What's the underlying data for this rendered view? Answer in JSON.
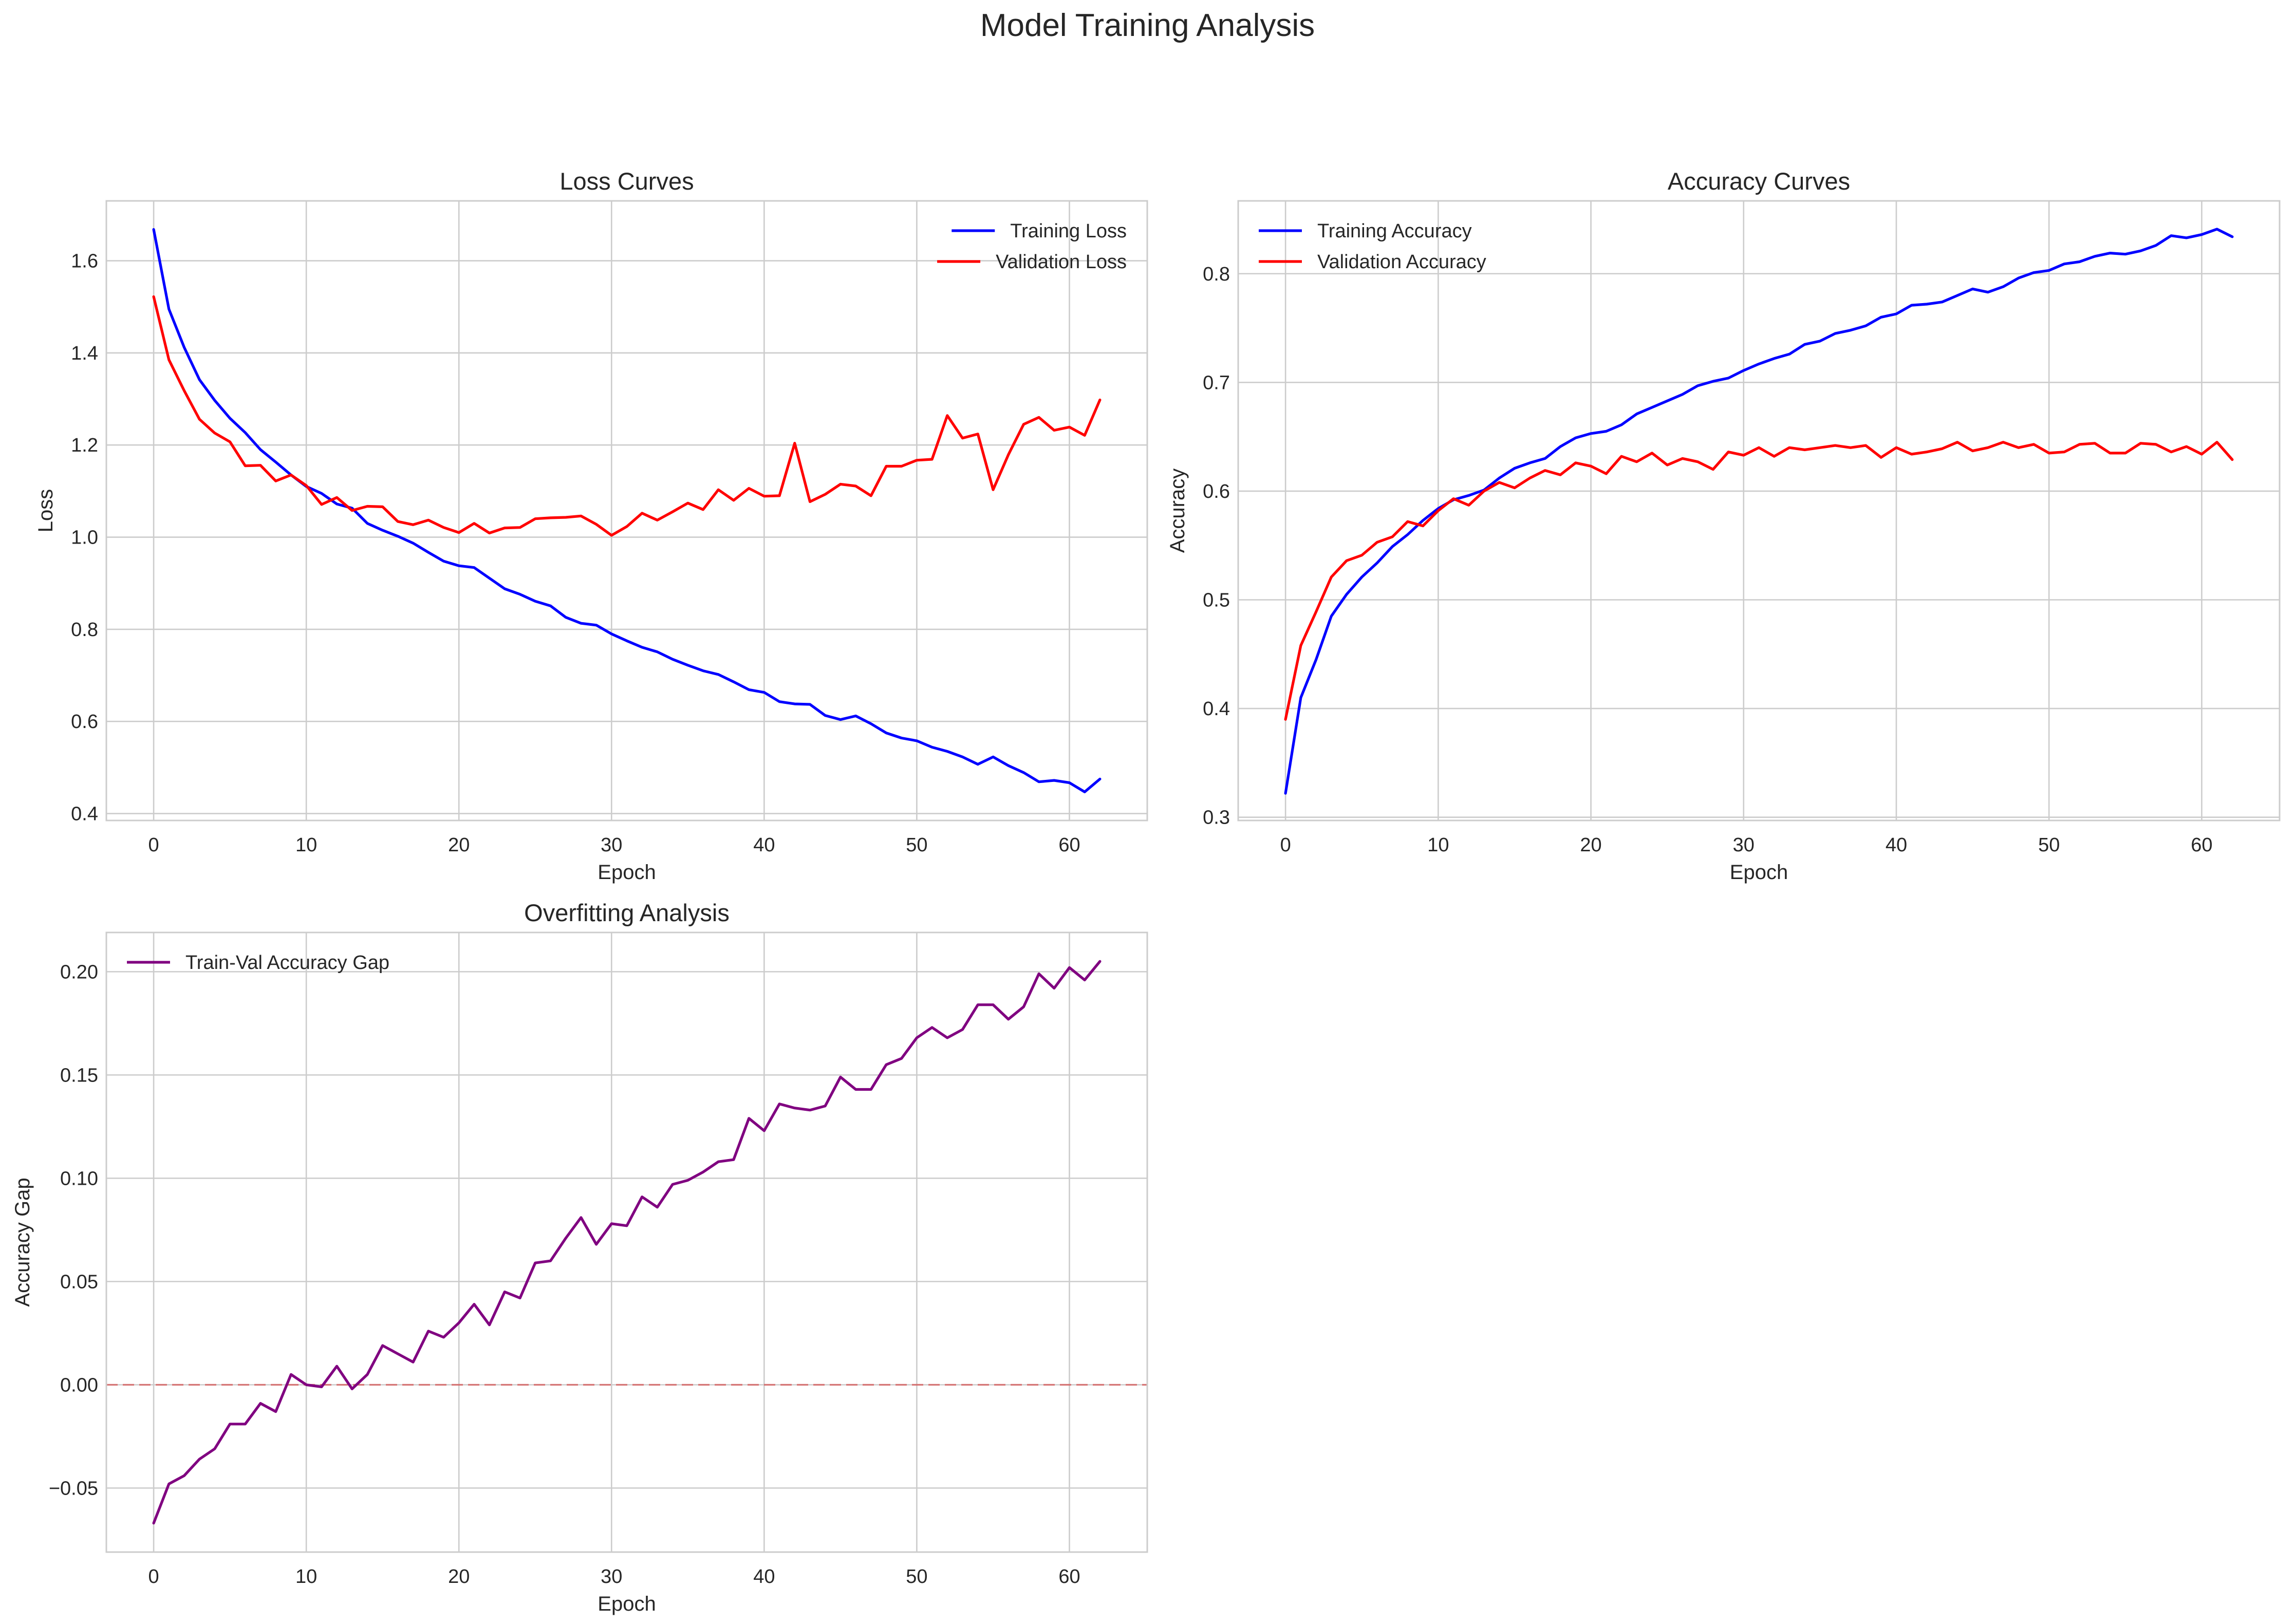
{
  "figure": {
    "title": "Model Training Analysis"
  },
  "chart_data": [
    {
      "type": "line",
      "title": "Loss Curves",
      "xlabel": "Epoch",
      "ylabel": "Loss",
      "xlim": [
        -3.1,
        65.1
      ],
      "ylim": [
        0.385,
        1.73
      ],
      "xticks": [
        0,
        10,
        20,
        30,
        40,
        50,
        60
      ],
      "yticks": [
        0.4,
        0.6,
        0.8,
        1.0,
        1.2,
        1.4,
        1.6
      ],
      "ytick_decimals": 1,
      "grid": true,
      "legend_position": "upper right",
      "series": [
        {
          "name": "Training Loss",
          "color": "#0000ff",
          "values": [
            1.668,
            1.495,
            1.412,
            1.342,
            1.297,
            1.258,
            1.227,
            1.19,
            1.163,
            1.135,
            1.11,
            1.095,
            1.072,
            1.063,
            1.03,
            1.015,
            1.002,
            0.987,
            0.967,
            0.948,
            0.938,
            0.934,
            0.911,
            0.888,
            0.876,
            0.861,
            0.851,
            0.826,
            0.813,
            0.809,
            0.79,
            0.775,
            0.761,
            0.751,
            0.735,
            0.722,
            0.71,
            0.702,
            0.686,
            0.669,
            0.663,
            0.643,
            0.638,
            0.637,
            0.613,
            0.604,
            0.612,
            0.595,
            0.575,
            0.564,
            0.558,
            0.544,
            0.535,
            0.523,
            0.507,
            0.523,
            0.504,
            0.489,
            0.469,
            0.472,
            0.467,
            0.447,
            0.475
          ]
        },
        {
          "name": "Validation Loss",
          "color": "#ff0000",
          "values": [
            1.522,
            1.385,
            1.318,
            1.256,
            1.226,
            1.207,
            1.155,
            1.156,
            1.122,
            1.135,
            1.112,
            1.071,
            1.086,
            1.058,
            1.067,
            1.066,
            1.034,
            1.027,
            1.037,
            1.021,
            1.01,
            1.03,
            1.009,
            1.02,
            1.021,
            1.04,
            1.042,
            1.043,
            1.046,
            1.028,
            1.004,
            1.023,
            1.052,
            1.037,
            1.055,
            1.074,
            1.06,
            1.103,
            1.08,
            1.106,
            1.089,
            1.09,
            1.204,
            1.077,
            1.093,
            1.115,
            1.111,
            1.09,
            1.154,
            1.154,
            1.167,
            1.169,
            1.264,
            1.215,
            1.224,
            1.103,
            1.179,
            1.245,
            1.26,
            1.232,
            1.239,
            1.221,
            1.298
          ]
        }
      ]
    },
    {
      "type": "line",
      "title": "Accuracy Curves",
      "xlabel": "Epoch",
      "ylabel": "Accuracy",
      "xlim": [
        -3.1,
        65.1
      ],
      "ylim": [
        0.297,
        0.867
      ],
      "xticks": [
        0,
        10,
        20,
        30,
        40,
        50,
        60
      ],
      "yticks": [
        0.3,
        0.4,
        0.5,
        0.6,
        0.7,
        0.8
      ],
      "ytick_decimals": 1,
      "grid": true,
      "legend_position": "upper left",
      "series": [
        {
          "name": "Training Accuracy",
          "color": "#0000ff",
          "values": [
            0.322,
            0.41,
            0.445,
            0.485,
            0.505,
            0.521,
            0.534,
            0.549,
            0.56,
            0.573,
            0.584,
            0.592,
            0.596,
            0.601,
            0.612,
            0.621,
            0.626,
            0.63,
            0.641,
            0.649,
            0.653,
            0.655,
            0.661,
            0.671,
            0.677,
            0.683,
            0.689,
            0.697,
            0.701,
            0.704,
            0.711,
            0.717,
            0.722,
            0.726,
            0.735,
            0.738,
            0.745,
            0.748,
            0.752,
            0.76,
            0.763,
            0.771,
            0.772,
            0.774,
            0.78,
            0.786,
            0.783,
            0.788,
            0.796,
            0.801,
            0.803,
            0.809,
            0.811,
            0.816,
            0.819,
            0.818,
            0.821,
            0.826,
            0.835,
            0.833,
            0.836,
            0.841,
            0.834
          ]
        },
        {
          "name": "Validation Accuracy",
          "color": "#ff0000",
          "values": [
            0.39,
            0.458,
            0.489,
            0.521,
            0.536,
            0.541,
            0.553,
            0.558,
            0.572,
            0.568,
            0.582,
            0.593,
            0.587,
            0.6,
            0.608,
            0.603,
            0.612,
            0.619,
            0.615,
            0.626,
            0.623,
            0.616,
            0.632,
            0.627,
            0.635,
            0.624,
            0.63,
            0.627,
            0.62,
            0.636,
            0.633,
            0.64,
            0.632,
            0.64,
            0.638,
            0.64,
            0.642,
            0.64,
            0.642,
            0.631,
            0.64,
            0.634,
            0.636,
            0.639,
            0.645,
            0.637,
            0.64,
            0.645,
            0.64,
            0.643,
            0.635,
            0.636,
            0.643,
            0.644,
            0.635,
            0.635,
            0.644,
            0.643,
            0.636,
            0.641,
            0.634,
            0.645,
            0.629
          ]
        }
      ]
    },
    {
      "type": "line",
      "title": "Overfitting Analysis",
      "xlabel": "Epoch",
      "ylabel": "Accuracy Gap",
      "xlim": [
        -3.1,
        65.1
      ],
      "ylim": [
        -0.081,
        0.219
      ],
      "xticks": [
        0,
        10,
        20,
        30,
        40,
        50,
        60
      ],
      "yticks": [
        -0.05,
        0.0,
        0.05,
        0.1,
        0.15,
        0.2
      ],
      "ytick_decimals": 2,
      "grid": true,
      "legend_position": "upper left",
      "hline": {
        "y": 0,
        "color": "#d62728",
        "style": "dashed"
      },
      "series": [
        {
          "name": "Train-Val Accuracy Gap",
          "color": "#800080",
          "values": [
            -0.067,
            -0.048,
            -0.044,
            -0.036,
            -0.031,
            -0.019,
            -0.019,
            -0.009,
            -0.013,
            0.005,
            0.0,
            -0.001,
            0.009,
            -0.002,
            0.005,
            0.019,
            0.015,
            0.011,
            0.026,
            0.023,
            0.03,
            0.039,
            0.029,
            0.045,
            0.042,
            0.059,
            0.06,
            0.071,
            0.081,
            0.068,
            0.078,
            0.077,
            0.091,
            0.086,
            0.097,
            0.099,
            0.103,
            0.108,
            0.109,
            0.129,
            0.123,
            0.136,
            0.134,
            0.133,
            0.135,
            0.149,
            0.143,
            0.143,
            0.155,
            0.158,
            0.168,
            0.173,
            0.168,
            0.172,
            0.184,
            0.184,
            0.177,
            0.183,
            0.199,
            0.192,
            0.202,
            0.196,
            0.205
          ]
        }
      ]
    }
  ]
}
